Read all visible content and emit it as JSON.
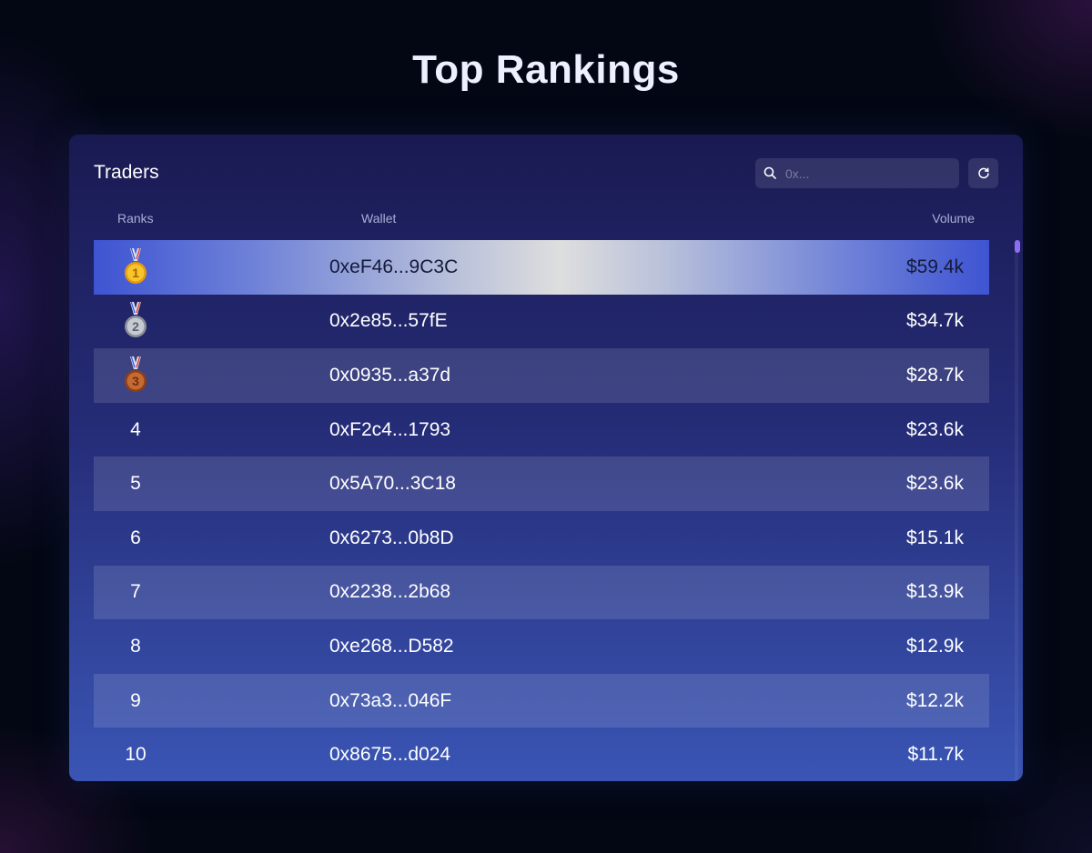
{
  "page": {
    "title": "Top Rankings"
  },
  "card": {
    "title": "Traders",
    "search": {
      "placeholder": "0x...",
      "value": ""
    },
    "columns": {
      "rank": "Ranks",
      "wallet": "Wallet",
      "volume": "Volume"
    }
  },
  "icons": {
    "search": "search-icon",
    "refresh": "refresh-icon",
    "medals": [
      "gold-medal-icon",
      "silver-medal-icon",
      "bronze-medal-icon"
    ]
  },
  "colors": {
    "accent": "#8f6df0",
    "gold": "#f5b820",
    "silver": "#a9adb6",
    "bronze": "#b8612c"
  },
  "rows": [
    {
      "rank": "1",
      "medal": "gold",
      "wallet": "0xeF46...9C3C",
      "volume": "$59.4k"
    },
    {
      "rank": "2",
      "medal": "silver",
      "wallet": "0x2e85...57fE",
      "volume": "$34.7k"
    },
    {
      "rank": "3",
      "medal": "bronze",
      "wallet": "0x0935...a37d",
      "volume": "$28.7k"
    },
    {
      "rank": "4",
      "wallet": "0xF2c4...1793",
      "volume": "$23.6k"
    },
    {
      "rank": "5",
      "wallet": "0x5A70...3C18",
      "volume": "$23.6k"
    },
    {
      "rank": "6",
      "wallet": "0x6273...0b8D",
      "volume": "$15.1k"
    },
    {
      "rank": "7",
      "wallet": "0x2238...2b68",
      "volume": "$13.9k"
    },
    {
      "rank": "8",
      "wallet": "0xe268...D582",
      "volume": "$12.9k"
    },
    {
      "rank": "9",
      "wallet": "0x73a3...046F",
      "volume": "$12.2k"
    },
    {
      "rank": "10",
      "wallet": "0x8675...d024",
      "volume": "$11.7k"
    }
  ]
}
